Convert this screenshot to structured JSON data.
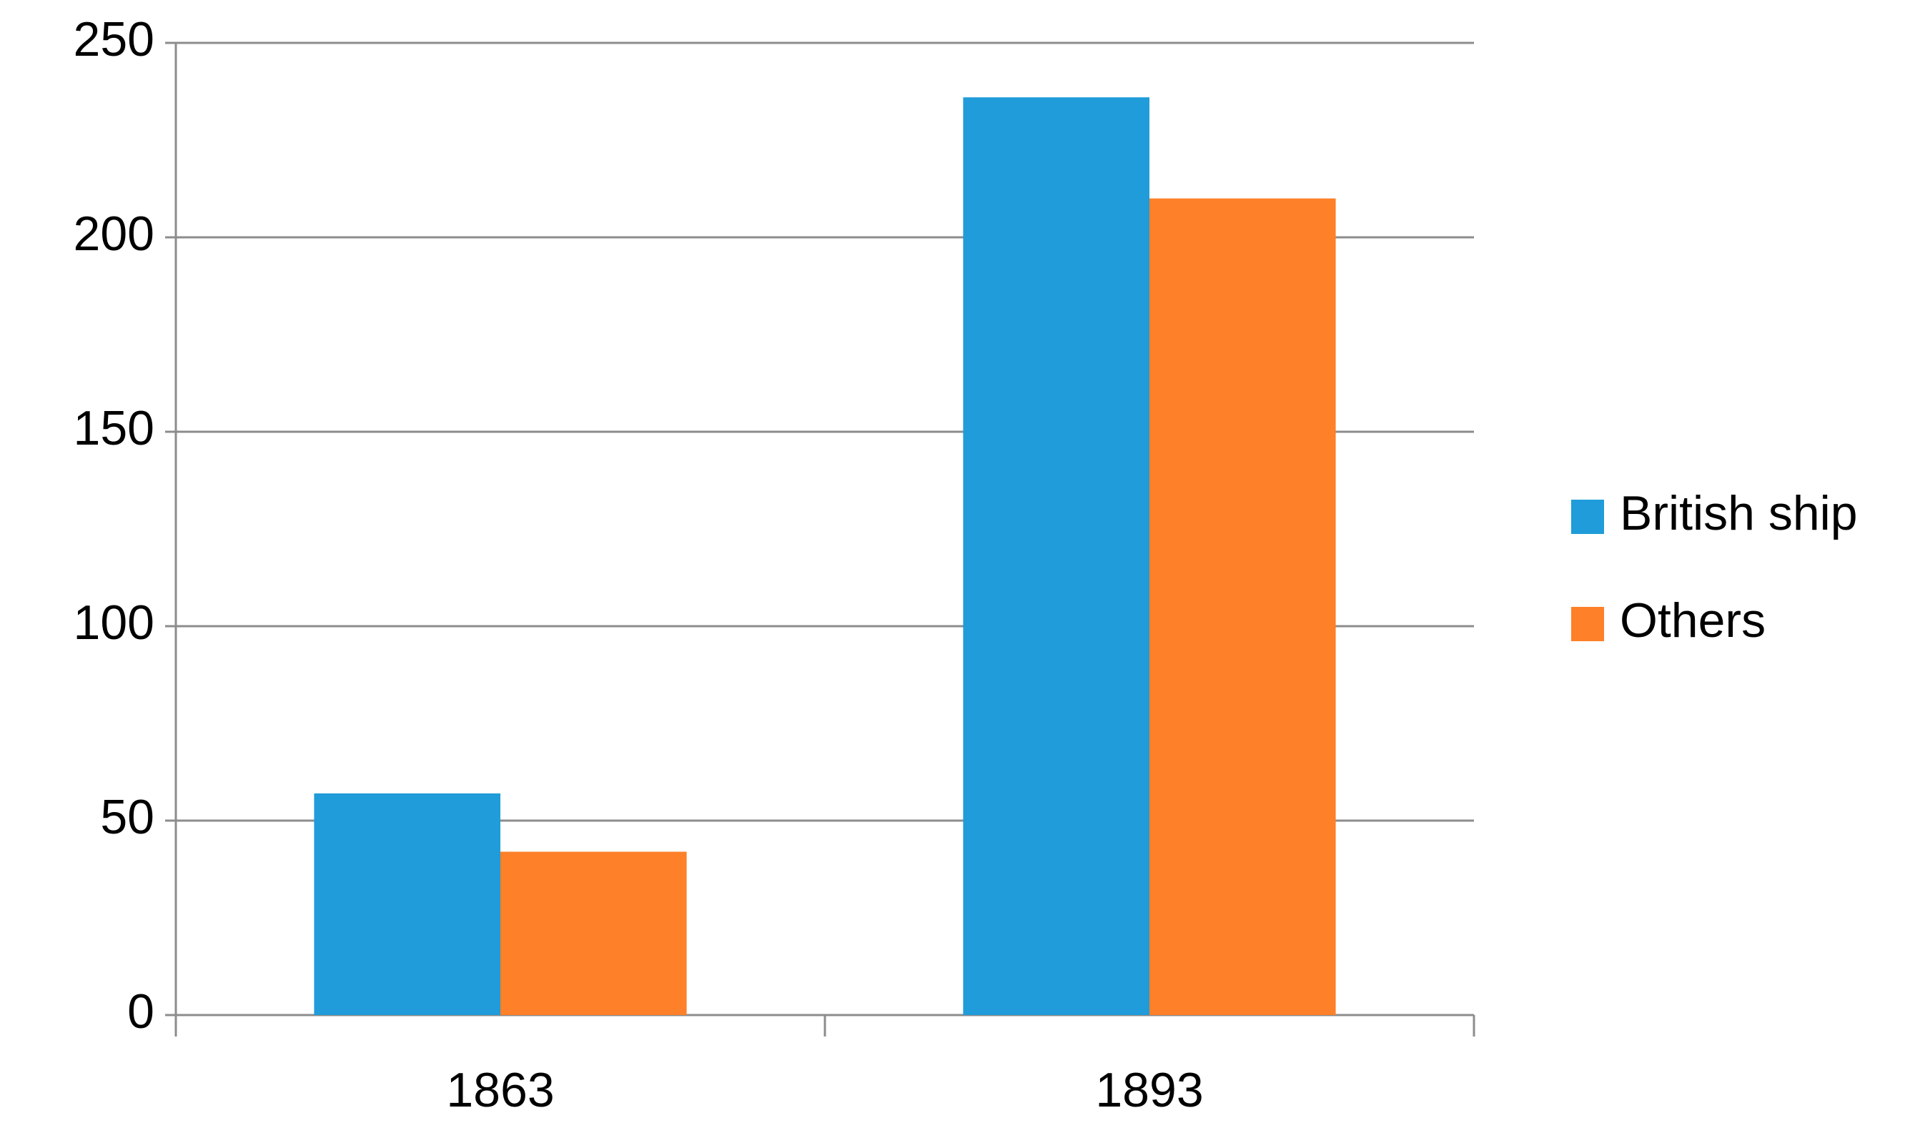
{
  "chart_data": {
    "type": "bar",
    "categories": [
      "1863",
      "1893"
    ],
    "series": [
      {
        "name": "British ship",
        "color": "#1f9cd9",
        "values": [
          57,
          236
        ]
      },
      {
        "name": "Others",
        "color": "#fe8028",
        "values": [
          42,
          210
        ]
      }
    ],
    "ylim": [
      0,
      250
    ],
    "yticks": [
      0,
      50,
      100,
      150,
      200,
      250
    ],
    "grid": true,
    "legend": "right"
  }
}
